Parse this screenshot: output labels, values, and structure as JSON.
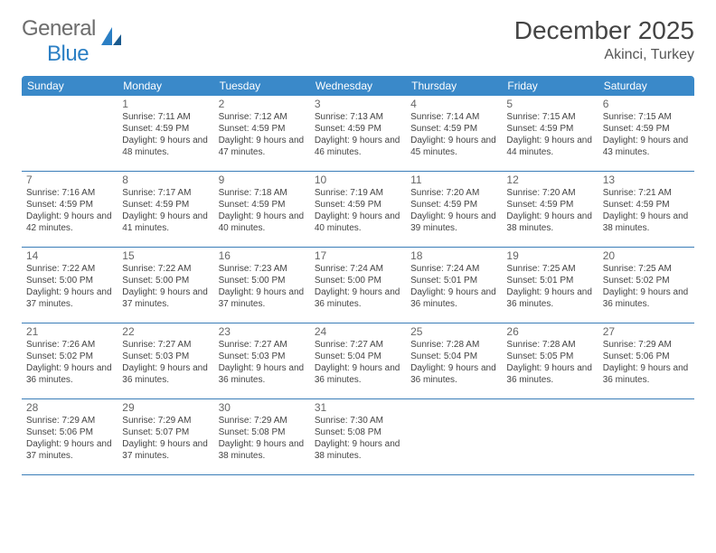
{
  "logo": {
    "text_left": "General",
    "text_right": "Blue"
  },
  "title": "December 2025",
  "location": "Akinci, Turkey",
  "colors": {
    "header_bg": "#3a89c9",
    "header_text": "#ffffff",
    "row_border": "#3a7db8",
    "body_text": "#444444",
    "daynum_text": "#666666",
    "logo_gray": "#6d6d6d",
    "logo_blue": "#2b7fc4",
    "background": "#ffffff"
  },
  "fonts": {
    "title_size": 28,
    "location_size": 16,
    "dow_size": 12,
    "daynum_size": 12,
    "detail_size": 10,
    "logo_size": 24
  },
  "days_of_week": [
    "Sunday",
    "Monday",
    "Tuesday",
    "Wednesday",
    "Thursday",
    "Friday",
    "Saturday"
  ],
  "weeks": [
    [
      null,
      {
        "n": "1",
        "sunrise": "7:11 AM",
        "sunset": "4:59 PM",
        "daylight": "9 hours and 48 minutes."
      },
      {
        "n": "2",
        "sunrise": "7:12 AM",
        "sunset": "4:59 PM",
        "daylight": "9 hours and 47 minutes."
      },
      {
        "n": "3",
        "sunrise": "7:13 AM",
        "sunset": "4:59 PM",
        "daylight": "9 hours and 46 minutes."
      },
      {
        "n": "4",
        "sunrise": "7:14 AM",
        "sunset": "4:59 PM",
        "daylight": "9 hours and 45 minutes."
      },
      {
        "n": "5",
        "sunrise": "7:15 AM",
        "sunset": "4:59 PM",
        "daylight": "9 hours and 44 minutes."
      },
      {
        "n": "6",
        "sunrise": "7:15 AM",
        "sunset": "4:59 PM",
        "daylight": "9 hours and 43 minutes."
      }
    ],
    [
      {
        "n": "7",
        "sunrise": "7:16 AM",
        "sunset": "4:59 PM",
        "daylight": "9 hours and 42 minutes."
      },
      {
        "n": "8",
        "sunrise": "7:17 AM",
        "sunset": "4:59 PM",
        "daylight": "9 hours and 41 minutes."
      },
      {
        "n": "9",
        "sunrise": "7:18 AM",
        "sunset": "4:59 PM",
        "daylight": "9 hours and 40 minutes."
      },
      {
        "n": "10",
        "sunrise": "7:19 AM",
        "sunset": "4:59 PM",
        "daylight": "9 hours and 40 minutes."
      },
      {
        "n": "11",
        "sunrise": "7:20 AM",
        "sunset": "4:59 PM",
        "daylight": "9 hours and 39 minutes."
      },
      {
        "n": "12",
        "sunrise": "7:20 AM",
        "sunset": "4:59 PM",
        "daylight": "9 hours and 38 minutes."
      },
      {
        "n": "13",
        "sunrise": "7:21 AM",
        "sunset": "4:59 PM",
        "daylight": "9 hours and 38 minutes."
      }
    ],
    [
      {
        "n": "14",
        "sunrise": "7:22 AM",
        "sunset": "5:00 PM",
        "daylight": "9 hours and 37 minutes."
      },
      {
        "n": "15",
        "sunrise": "7:22 AM",
        "sunset": "5:00 PM",
        "daylight": "9 hours and 37 minutes."
      },
      {
        "n": "16",
        "sunrise": "7:23 AM",
        "sunset": "5:00 PM",
        "daylight": "9 hours and 37 minutes."
      },
      {
        "n": "17",
        "sunrise": "7:24 AM",
        "sunset": "5:00 PM",
        "daylight": "9 hours and 36 minutes."
      },
      {
        "n": "18",
        "sunrise": "7:24 AM",
        "sunset": "5:01 PM",
        "daylight": "9 hours and 36 minutes."
      },
      {
        "n": "19",
        "sunrise": "7:25 AM",
        "sunset": "5:01 PM",
        "daylight": "9 hours and 36 minutes."
      },
      {
        "n": "20",
        "sunrise": "7:25 AM",
        "sunset": "5:02 PM",
        "daylight": "9 hours and 36 minutes."
      }
    ],
    [
      {
        "n": "21",
        "sunrise": "7:26 AM",
        "sunset": "5:02 PM",
        "daylight": "9 hours and 36 minutes."
      },
      {
        "n": "22",
        "sunrise": "7:27 AM",
        "sunset": "5:03 PM",
        "daylight": "9 hours and 36 minutes."
      },
      {
        "n": "23",
        "sunrise": "7:27 AM",
        "sunset": "5:03 PM",
        "daylight": "9 hours and 36 minutes."
      },
      {
        "n": "24",
        "sunrise": "7:27 AM",
        "sunset": "5:04 PM",
        "daylight": "9 hours and 36 minutes."
      },
      {
        "n": "25",
        "sunrise": "7:28 AM",
        "sunset": "5:04 PM",
        "daylight": "9 hours and 36 minutes."
      },
      {
        "n": "26",
        "sunrise": "7:28 AM",
        "sunset": "5:05 PM",
        "daylight": "9 hours and 36 minutes."
      },
      {
        "n": "27",
        "sunrise": "7:29 AM",
        "sunset": "5:06 PM",
        "daylight": "9 hours and 36 minutes."
      }
    ],
    [
      {
        "n": "28",
        "sunrise": "7:29 AM",
        "sunset": "5:06 PM",
        "daylight": "9 hours and 37 minutes."
      },
      {
        "n": "29",
        "sunrise": "7:29 AM",
        "sunset": "5:07 PM",
        "daylight": "9 hours and 37 minutes."
      },
      {
        "n": "30",
        "sunrise": "7:29 AM",
        "sunset": "5:08 PM",
        "daylight": "9 hours and 38 minutes."
      },
      {
        "n": "31",
        "sunrise": "7:30 AM",
        "sunset": "5:08 PM",
        "daylight": "9 hours and 38 minutes."
      },
      null,
      null,
      null
    ]
  ],
  "labels": {
    "sunrise": "Sunrise:",
    "sunset": "Sunset:",
    "daylight": "Daylight:"
  }
}
